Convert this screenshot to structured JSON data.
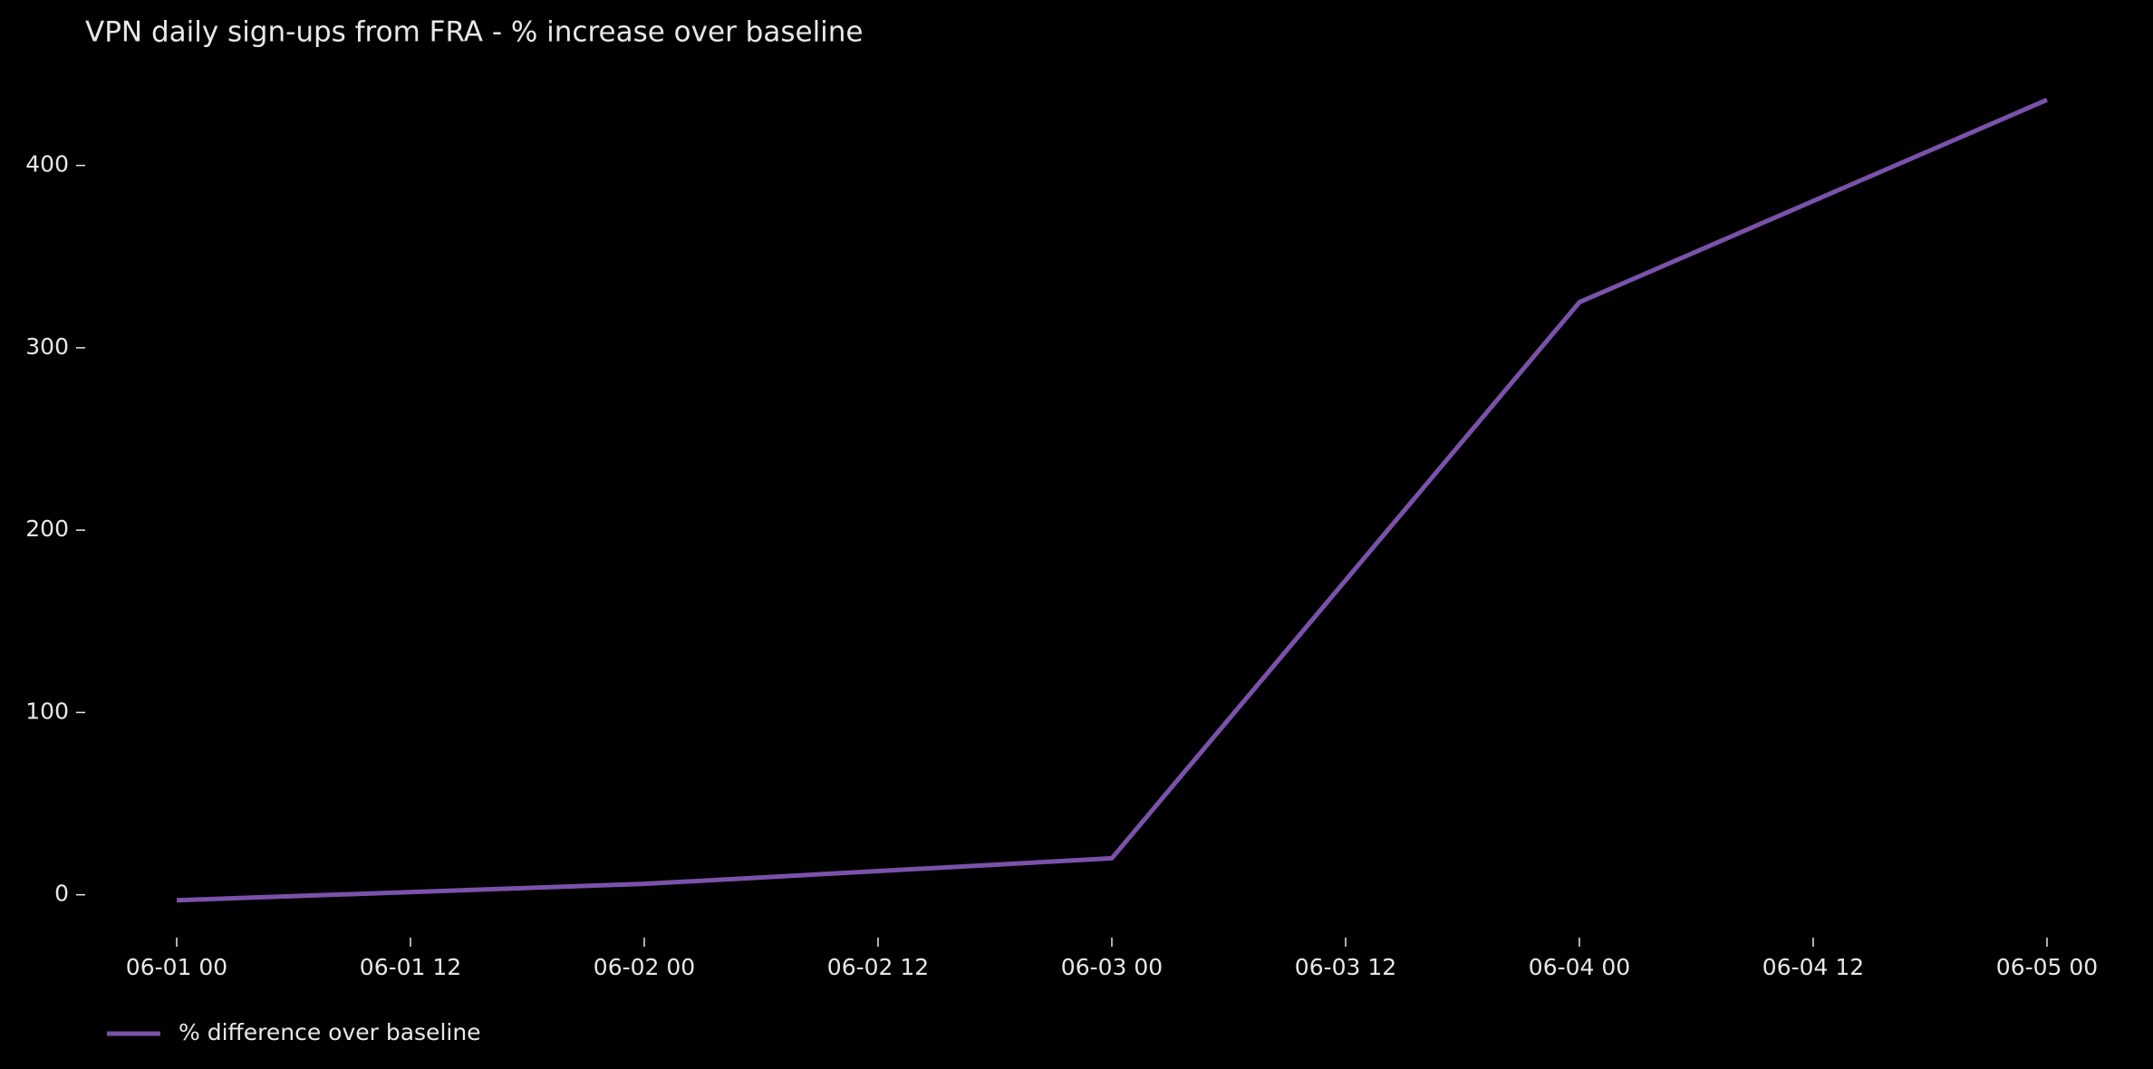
{
  "chart_data": {
    "type": "line",
    "title": "VPN daily sign-ups from FRA - % increase over baseline",
    "x": [
      "06-01 00",
      "06-02 00",
      "06-03 00",
      "06-04 00",
      "06-05 00"
    ],
    "series": [
      {
        "name": "% difference over baseline",
        "color": "#7b52ab",
        "values": [
          -3,
          6,
          20,
          325,
          436
        ]
      }
    ],
    "xticks": [
      "06-01 00",
      "06-01 12",
      "06-02 00",
      "06-02 12",
      "06-03 00",
      "06-03 12",
      "06-04 00",
      "06-04 12",
      "06-05 00"
    ],
    "ylim": [
      -25,
      450
    ],
    "yticks": [
      0,
      100,
      200,
      300,
      400
    ],
    "grid": false,
    "legend": "lower left"
  }
}
